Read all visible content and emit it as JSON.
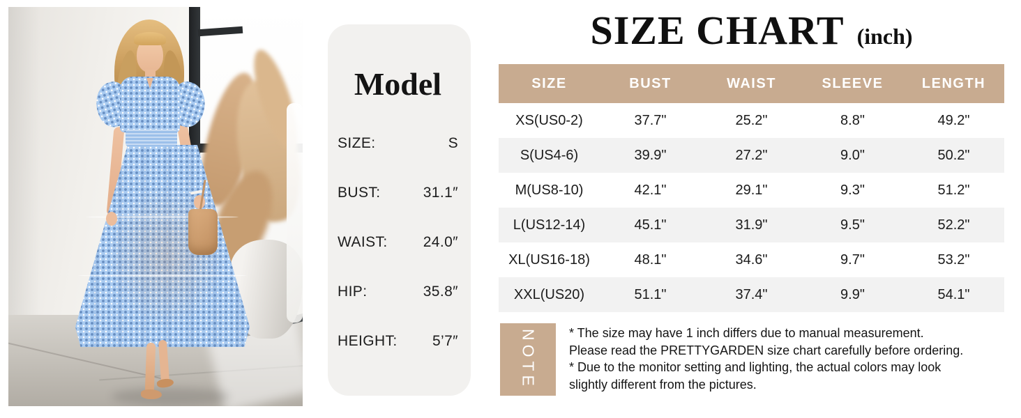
{
  "colors": {
    "accent_tan": "#c8ab90",
    "row_alt_gray": "#f2f2f2",
    "card_gray": "#f2f1ef",
    "dress_blue": "#a9cbf1",
    "text_dark": "#141414"
  },
  "model_card": {
    "title": "Model",
    "rows": [
      {
        "label": "SIZE:",
        "value": "S"
      },
      {
        "label": "BUST:",
        "value": "31.1″"
      },
      {
        "label": "WAIST:",
        "value": "24.0″"
      },
      {
        "label": "HIP:",
        "value": "35.8″"
      },
      {
        "label": "HEIGHT:",
        "value": "5’7″"
      }
    ]
  },
  "size_chart": {
    "title": "SIZE CHART",
    "unit_label": "(inch)",
    "headers": [
      "SIZE",
      "BUST",
      "WAIST",
      "SLEEVE",
      "LENGTH"
    ],
    "rows": [
      {
        "cells": [
          "XS(US0-2)",
          "37.7\"",
          "25.2\"",
          "8.8\"",
          "49.2\""
        ]
      },
      {
        "cells": [
          "S(US4-6)",
          "39.9\"",
          "27.2\"",
          "9.0\"",
          "50.2\""
        ]
      },
      {
        "cells": [
          "M(US8-10)",
          "42.1\"",
          "29.1\"",
          "9.3\"",
          "51.2\""
        ]
      },
      {
        "cells": [
          "L(US12-14)",
          "45.1\"",
          "31.9\"",
          "9.5\"",
          "52.2\""
        ]
      },
      {
        "cells": [
          "XL(US16-18)",
          "48.1\"",
          "34.6\"",
          "9.7\"",
          "53.2\""
        ]
      },
      {
        "cells": [
          "XXL(US20)",
          "51.1\"",
          "37.4\"",
          "9.9\"",
          "54.1\""
        ]
      }
    ]
  },
  "note": {
    "label": "NOTE",
    "lines": [
      "* The size may have 1 inch differs due to manual measurement.",
      "Please read the PRETTYGARDEN size chart carefully before ordering.",
      "* Due to the monitor setting and lighting, the actual colors may look",
      "slightly different from the pictures."
    ]
  }
}
